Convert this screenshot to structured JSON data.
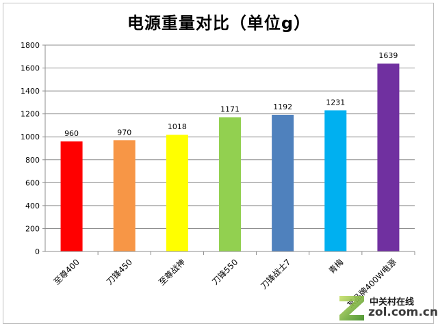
{
  "chart_data": {
    "type": "bar",
    "title": "电源重量对比（单位g）",
    "categories": [
      "至尊400",
      "刀锋450",
      "至尊战神",
      "刀锋550",
      "刀锋战士7",
      "青梅",
      "某品牌400W电源"
    ],
    "values": [
      960,
      970,
      1018,
      1171,
      1192,
      1231,
      1639
    ],
    "colors": [
      "#ff0000",
      "#f79646",
      "#ffff00",
      "#92d050",
      "#4f81bd",
      "#00b0f0",
      "#7030a0"
    ],
    "ylim": [
      0,
      1800
    ],
    "yticks": [
      0,
      200,
      400,
      600,
      800,
      1000,
      1200,
      1400,
      1600,
      1800
    ],
    "grid": true,
    "legend": "none",
    "xlabel": "",
    "ylabel": ""
  },
  "watermark": {
    "name_cn": "中关村在线",
    "domain": "zol.com.cn",
    "logo_icon": "zol-z-logo-icon"
  }
}
